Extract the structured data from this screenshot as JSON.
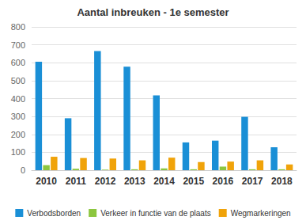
{
  "chart_data": {
    "type": "bar",
    "title": "Aantal inbreuken - 1e semester",
    "categories": [
      "2010",
      "2011",
      "2012",
      "2013",
      "2014",
      "2015",
      "2016",
      "2017",
      "2018"
    ],
    "series": [
      {
        "name": "Verbodsborden",
        "color": "#1a8fd6",
        "values": [
          605,
          290,
          665,
          578,
          418,
          155,
          165,
          298,
          128
        ]
      },
      {
        "name": "Verkeer in functie van de plaats",
        "color": "#8cc63f",
        "values": [
          28,
          8,
          3,
          5,
          10,
          5,
          20,
          5,
          5
        ]
      },
      {
        "name": "Wegmarkeringen",
        "color": "#f0a30a",
        "values": [
          75,
          68,
          65,
          55,
          70,
          45,
          48,
          55,
          32
        ]
      }
    ],
    "ylim": [
      0,
      800
    ],
    "yticks": [
      0,
      100,
      200,
      300,
      400,
      500,
      600,
      700,
      800
    ],
    "grid": true,
    "legend": "bottom"
  }
}
